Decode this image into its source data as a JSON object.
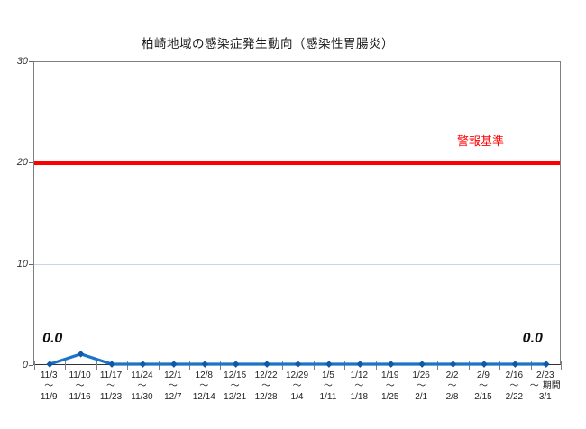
{
  "title": "柏崎地域の感染症発生動向（感染性胃腸炎）",
  "chart_data": {
    "type": "line",
    "title": "柏崎地域の感染症発生動向（感染性胃腸炎）",
    "categories": [
      {
        "start": "11/3",
        "end": "11/9"
      },
      {
        "start": "11/10",
        "end": "11/16"
      },
      {
        "start": "11/17",
        "end": "11/23"
      },
      {
        "start": "11/24",
        "end": "11/30"
      },
      {
        "start": "12/1",
        "end": "12/7"
      },
      {
        "start": "12/8",
        "end": "12/14"
      },
      {
        "start": "12/15",
        "end": "12/21"
      },
      {
        "start": "12/22",
        "end": "12/28"
      },
      {
        "start": "12/29",
        "end": "1/4"
      },
      {
        "start": "1/5",
        "end": "1/11"
      },
      {
        "start": "1/12",
        "end": "1/18"
      },
      {
        "start": "1/19",
        "end": "1/25"
      },
      {
        "start": "1/26",
        "end": "2/1"
      },
      {
        "start": "2/2",
        "end": "2/8"
      },
      {
        "start": "2/9",
        "end": "2/15"
      },
      {
        "start": "2/16",
        "end": "2/22"
      },
      {
        "start": "2/23",
        "end": "3/1"
      }
    ],
    "range_separator": "～",
    "x_axis_unit_label": "期間",
    "values": [
      0.0,
      1.0,
      0.0,
      0.0,
      0.0,
      0.0,
      0.0,
      0.0,
      0.0,
      0.0,
      0.0,
      0.0,
      0.0,
      0.0,
      0.0,
      0.0,
      0.0
    ],
    "ylim": [
      0,
      30
    ],
    "yticks": [
      0,
      10,
      20,
      30
    ],
    "gridline_values": [
      10,
      20
    ],
    "gridline_color": "#c9d6e2",
    "threshold": {
      "label": "警報基準",
      "value": 20,
      "color": "#ff0000"
    },
    "point_labels": [
      {
        "index": 0,
        "text": "0.0"
      },
      {
        "index": 16,
        "text": "0.0"
      }
    ],
    "series_color": "#1b74c8",
    "marker_color": "#1159a6",
    "legend": "none"
  }
}
